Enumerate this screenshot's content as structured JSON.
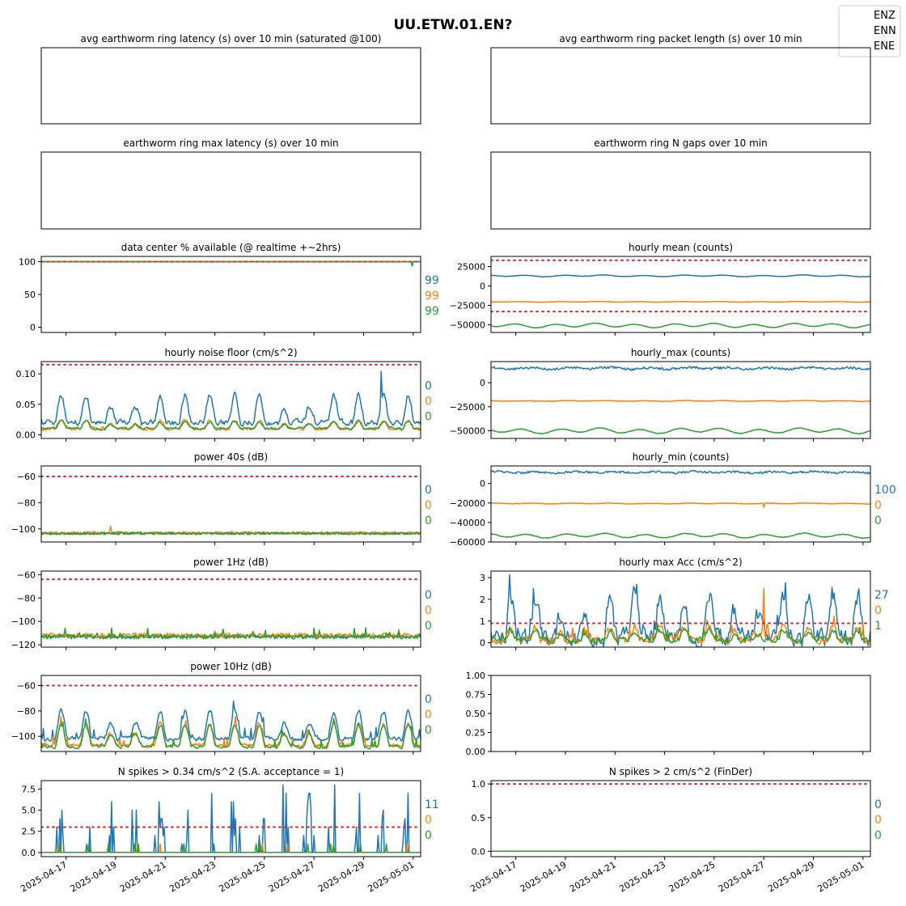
{
  "figure": {
    "title": "UU.ETW.01.EN?"
  },
  "legend": {
    "placement": "top-right",
    "entries": [
      "ENZ",
      "ENN",
      "ENE"
    ]
  },
  "colors": {
    "ENZ": "#1f77b4",
    "ENN": "#ff7f0e",
    "ENE": "#2ca02c",
    "threshold": "#d62728",
    "axis": "#000000"
  },
  "shared_x": {
    "type": "date",
    "range": [
      "2025-04-16",
      "2025-05-01"
    ],
    "tick_labels": [
      "2025-04-17",
      "2025-04-19",
      "2025-04-21",
      "2025-04-23",
      "2025-04-25",
      "2025-04-27",
      "2025-04-29",
      "2025-05-01"
    ]
  },
  "chart_data": [
    {
      "id": "p1",
      "type": "line",
      "title": "avg earthworm ring latency (s)   over 10 min (saturated @100)",
      "empty": true,
      "series": []
    },
    {
      "id": "p2",
      "type": "line",
      "title": "avg earthworm ring packet length (s)   over 10 min",
      "empty": true,
      "series": []
    },
    {
      "id": "p3",
      "type": "line",
      "title": "earthworm ring max latency (s)   over 10 min",
      "empty": true,
      "series": []
    },
    {
      "id": "p4",
      "type": "line",
      "title": "earthworm ring N gaps   over 10 min",
      "empty": true,
      "series": []
    },
    {
      "id": "p5",
      "type": "line",
      "title": "data center % available (@ realtime +~2hrs)",
      "ylim": [
        -8,
        108
      ],
      "yticks": [
        "100",
        "50",
        "0"
      ],
      "threshold": 100,
      "series": [
        {
          "name": "ENZ",
          "kind": "flat",
          "base": 100,
          "noise": 0
        },
        {
          "name": "ENN",
          "kind": "flat",
          "base": 100,
          "noise": 0
        },
        {
          "name": "ENE",
          "kind": "flat",
          "base": 100,
          "noise": 0,
          "dip_at": "2025-05-01",
          "dip_value": 93
        }
      ],
      "end_labels": [
        "99",
        "99",
        "99"
      ]
    },
    {
      "id": "p6",
      "type": "line",
      "title": "hourly mean (counts)",
      "ylim": [
        -60000,
        38000
      ],
      "yticks": [
        "25000",
        "0",
        "−25000",
        "−50000"
      ],
      "thresholds": [
        33000,
        -33000
      ],
      "series": [
        {
          "name": "ENZ",
          "kind": "wavy",
          "base": 13000,
          "amp": 1200,
          "noise": 200
        },
        {
          "name": "ENN",
          "kind": "wavy",
          "base": -20500,
          "amp": 500,
          "noise": 150
        },
        {
          "name": "ENE",
          "kind": "wavy",
          "base": -51000,
          "amp": 3000,
          "noise": 200
        }
      ],
      "end_labels": []
    },
    {
      "id": "p7",
      "type": "line",
      "title": "hourly noise floor (cm/s^2)",
      "ylim": [
        -0.006,
        0.12
      ],
      "yticks": [
        "0.10",
        "0.05",
        "0.00"
      ],
      "threshold": 0.115,
      "series": [
        {
          "name": "ENZ",
          "kind": "diurnal",
          "base": 0.02,
          "amp": 0.045,
          "noise": 0.004,
          "spike_at": "2025-04-29.7",
          "spike_value": 0.104
        },
        {
          "name": "ENN",
          "kind": "diurnal",
          "base": 0.01,
          "amp": 0.013,
          "noise": 0.002
        },
        {
          "name": "ENE",
          "kind": "diurnal",
          "base": 0.01,
          "amp": 0.012,
          "noise": 0.002
        }
      ],
      "end_labels": [
        "0",
        "0",
        "0"
      ]
    },
    {
      "id": "p8",
      "type": "line",
      "title": "hourly_max (counts)",
      "ylim": [
        -58000,
        22000
      ],
      "yticks": [
        "0",
        "−25000",
        "−50000"
      ],
      "series": [
        {
          "name": "ENZ",
          "kind": "wavy",
          "base": 15000,
          "amp": 1200,
          "noise": 1200
        },
        {
          "name": "ENN",
          "kind": "wavy",
          "base": -19000,
          "amp": 400,
          "noise": 300
        },
        {
          "name": "ENE",
          "kind": "wavy",
          "base": -50000,
          "amp": 3000,
          "noise": 300
        }
      ],
      "end_labels": []
    },
    {
      "id": "p9",
      "type": "line",
      "title": "power 40s (dB)",
      "ylim": [
        -110,
        -52
      ],
      "yticks": [
        "−60",
        "−80",
        "−100"
      ],
      "threshold": -60,
      "series": [
        {
          "name": "ENZ",
          "kind": "flat",
          "base": -103.5,
          "noise": 0.8
        },
        {
          "name": "ENN",
          "kind": "flat",
          "base": -103,
          "noise": 0.9,
          "spike_at": "2025-04-18.8",
          "spike_value": -98
        },
        {
          "name": "ENE",
          "kind": "flat",
          "base": -103.5,
          "noise": 0.8
        }
      ],
      "end_labels": [
        "0",
        "0",
        "0"
      ]
    },
    {
      "id": "p10",
      "type": "line",
      "title": "hourly_min (counts)",
      "ylim": [
        -60000,
        18000
      ],
      "yticks": [
        "0",
        "−20000",
        "−40000",
        "−60000"
      ],
      "series": [
        {
          "name": "ENZ",
          "kind": "wavy",
          "base": 11500,
          "amp": 800,
          "noise": 1000
        },
        {
          "name": "ENN",
          "kind": "wavy",
          "base": -20500,
          "amp": 400,
          "noise": 300,
          "spike_at": "2025-04-27",
          "spike_value": -24500
        },
        {
          "name": "ENE",
          "kind": "wavy",
          "base": -53500,
          "amp": 2500,
          "noise": 300
        }
      ],
      "end_labels": [
        "100",
        "0",
        "0"
      ]
    },
    {
      "id": "p11",
      "type": "line",
      "title": "power 1Hz (dB)",
      "ylim": [
        -122,
        -57
      ],
      "yticks": [
        "−60",
        "−80",
        "−100",
        "−120"
      ],
      "threshold": -64,
      "series": [
        {
          "name": "ENZ",
          "kind": "flat",
          "base": -113,
          "noise": 1.0
        },
        {
          "name": "ENN",
          "kind": "flat",
          "base": -112,
          "noise": 2.0
        },
        {
          "name": "ENE",
          "kind": "spiky",
          "base": -113,
          "noise": 2.0,
          "spike_prob": 0.08,
          "spike_amp": 8
        }
      ],
      "end_labels": [
        "0",
        "0",
        "0"
      ]
    },
    {
      "id": "p12",
      "type": "line",
      "title": "hourly max Acc (cm/s^2)",
      "ylim": [
        -0.2,
        3.3
      ],
      "yticks": [
        "3",
        "2",
        "1",
        "0"
      ],
      "threshold": 0.9,
      "series": [
        {
          "name": "ENZ",
          "kind": "diurnal",
          "base": 0.25,
          "amp": 1.9,
          "noise": 0.35
        },
        {
          "name": "ENN",
          "kind": "diurnal",
          "base": 0.15,
          "amp": 0.6,
          "noise": 0.15,
          "spike_at": "2025-04-27",
          "spike_value": 2.5
        },
        {
          "name": "ENE",
          "kind": "diurnal",
          "base": 0.12,
          "amp": 0.45,
          "noise": 0.12
        }
      ],
      "end_labels": [
        "27",
        "0",
        "1"
      ]
    },
    {
      "id": "p13",
      "type": "line",
      "title": "power 10Hz (dB)",
      "ylim": [
        -112,
        -52
      ],
      "yticks": [
        "−60",
        "−80",
        "−100"
      ],
      "threshold": -60,
      "series": [
        {
          "name": "ENZ",
          "kind": "diurnal",
          "base": -102,
          "amp": 22,
          "noise": 1.5
        },
        {
          "name": "ENN",
          "kind": "diurnal",
          "base": -107,
          "amp": 17,
          "noise": 1.2
        },
        {
          "name": "ENE",
          "kind": "diurnal",
          "base": -108,
          "amp": 17,
          "noise": 1.2
        }
      ],
      "end_labels": [
        "0",
        "0",
        "0"
      ]
    },
    {
      "id": "p14",
      "type": "line",
      "title": "",
      "ylim": [
        0,
        1
      ],
      "yticks": [
        "1.00",
        "0.75",
        "0.50",
        "0.25",
        "0.00"
      ],
      "empty": true,
      "series": []
    },
    {
      "id": "p15",
      "type": "line",
      "title": "N spikes > 0.34 cm/s^2 (S.A. acceptance = 1)",
      "ylim": [
        -0.5,
        8.5
      ],
      "yticks": [
        "7.5",
        "5.0",
        "2.5",
        "0.0"
      ],
      "threshold": 3,
      "series": [
        {
          "name": "ENZ",
          "kind": "counts",
          "max": 8,
          "prob": 0.45
        },
        {
          "name": "ENN",
          "kind": "counts",
          "max": 1,
          "prob": 0.25
        },
        {
          "name": "ENE",
          "kind": "counts",
          "max": 1,
          "prob": 0.15
        }
      ],
      "end_labels": [
        "11",
        "0",
        "0"
      ]
    },
    {
      "id": "p16",
      "type": "line",
      "title": "N spikes > 2 cm/s^2 (FinDer)",
      "ylim": [
        -0.08,
        1.05
      ],
      "yticks": [
        "1.0",
        "0.5",
        "0.0"
      ],
      "threshold": 1.0,
      "series": [
        {
          "name": "ENZ",
          "kind": "flat",
          "base": 0,
          "noise": 0
        },
        {
          "name": "ENN",
          "kind": "flat",
          "base": 0,
          "noise": 0
        },
        {
          "name": "ENE",
          "kind": "flat",
          "base": 0,
          "noise": 0
        }
      ],
      "end_labels": [
        "0",
        "0",
        "0"
      ]
    }
  ]
}
